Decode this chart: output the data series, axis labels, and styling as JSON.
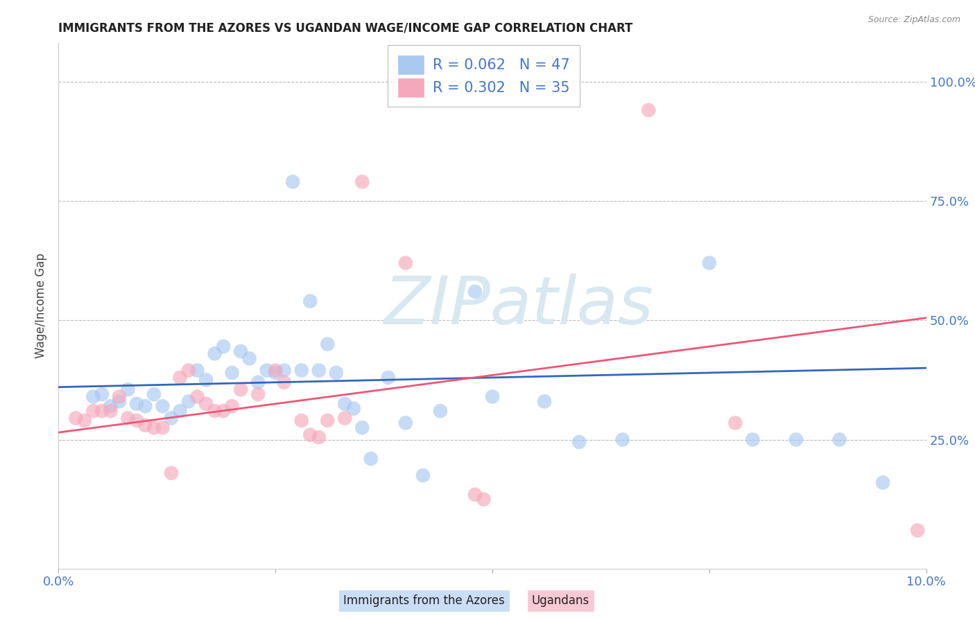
{
  "title": "IMMIGRANTS FROM THE AZORES VS UGANDAN WAGE/INCOME GAP CORRELATION CHART",
  "source": "Source: ZipAtlas.com",
  "ylabel": "Wage/Income Gap",
  "xlim": [
    0.0,
    0.1
  ],
  "ylim": [
    -0.02,
    1.08
  ],
  "ytick_vals": [
    0.25,
    0.5,
    0.75,
    1.0
  ],
  "ytick_labels": [
    "25.0%",
    "50.0%",
    "75.0%",
    "100.0%"
  ],
  "xtick_positions": [
    0.0,
    0.1
  ],
  "xtick_labels": [
    "0.0%",
    "10.0%"
  ],
  "legend1_r": "0.062",
  "legend1_n": "47",
  "legend2_r": "0.302",
  "legend2_n": "35",
  "blue_color": "#a8c8f0",
  "pink_color": "#f5a8bc",
  "blue_line_color": "#3366bb",
  "pink_line_color": "#ee5577",
  "blue_scatter": [
    [
      0.004,
      0.34
    ],
    [
      0.005,
      0.345
    ],
    [
      0.006,
      0.32
    ],
    [
      0.007,
      0.33
    ],
    [
      0.008,
      0.355
    ],
    [
      0.009,
      0.325
    ],
    [
      0.01,
      0.32
    ],
    [
      0.011,
      0.345
    ],
    [
      0.012,
      0.32
    ],
    [
      0.013,
      0.295
    ],
    [
      0.014,
      0.31
    ],
    [
      0.015,
      0.33
    ],
    [
      0.016,
      0.395
    ],
    [
      0.017,
      0.375
    ],
    [
      0.018,
      0.43
    ],
    [
      0.019,
      0.445
    ],
    [
      0.02,
      0.39
    ],
    [
      0.021,
      0.435
    ],
    [
      0.022,
      0.42
    ],
    [
      0.023,
      0.37
    ],
    [
      0.024,
      0.395
    ],
    [
      0.025,
      0.39
    ],
    [
      0.026,
      0.395
    ],
    [
      0.027,
      0.79
    ],
    [
      0.028,
      0.395
    ],
    [
      0.029,
      0.54
    ],
    [
      0.03,
      0.395
    ],
    [
      0.031,
      0.45
    ],
    [
      0.032,
      0.39
    ],
    [
      0.033,
      0.325
    ],
    [
      0.034,
      0.315
    ],
    [
      0.035,
      0.275
    ],
    [
      0.036,
      0.21
    ],
    [
      0.038,
      0.38
    ],
    [
      0.04,
      0.285
    ],
    [
      0.042,
      0.175
    ],
    [
      0.044,
      0.31
    ],
    [
      0.048,
      0.56
    ],
    [
      0.05,
      0.34
    ],
    [
      0.056,
      0.33
    ],
    [
      0.06,
      0.245
    ],
    [
      0.065,
      0.25
    ],
    [
      0.075,
      0.62
    ],
    [
      0.08,
      0.25
    ],
    [
      0.085,
      0.25
    ],
    [
      0.09,
      0.25
    ],
    [
      0.095,
      0.16
    ]
  ],
  "pink_scatter": [
    [
      0.002,
      0.295
    ],
    [
      0.003,
      0.29
    ],
    [
      0.004,
      0.31
    ],
    [
      0.005,
      0.31
    ],
    [
      0.006,
      0.31
    ],
    [
      0.007,
      0.34
    ],
    [
      0.008,
      0.295
    ],
    [
      0.009,
      0.29
    ],
    [
      0.01,
      0.28
    ],
    [
      0.011,
      0.275
    ],
    [
      0.012,
      0.275
    ],
    [
      0.013,
      0.18
    ],
    [
      0.014,
      0.38
    ],
    [
      0.015,
      0.395
    ],
    [
      0.016,
      0.34
    ],
    [
      0.017,
      0.325
    ],
    [
      0.018,
      0.31
    ],
    [
      0.019,
      0.31
    ],
    [
      0.02,
      0.32
    ],
    [
      0.021,
      0.355
    ],
    [
      0.023,
      0.345
    ],
    [
      0.025,
      0.395
    ],
    [
      0.026,
      0.37
    ],
    [
      0.028,
      0.29
    ],
    [
      0.029,
      0.26
    ],
    [
      0.03,
      0.255
    ],
    [
      0.031,
      0.29
    ],
    [
      0.033,
      0.295
    ],
    [
      0.035,
      0.79
    ],
    [
      0.04,
      0.62
    ],
    [
      0.048,
      0.135
    ],
    [
      0.049,
      0.125
    ],
    [
      0.068,
      0.94
    ],
    [
      0.078,
      0.285
    ],
    [
      0.099,
      0.06
    ]
  ],
  "blue_line": [
    [
      0.0,
      0.36
    ],
    [
      0.1,
      0.4
    ]
  ],
  "pink_line": [
    [
      0.0,
      0.265
    ],
    [
      0.1,
      0.505
    ]
  ],
  "background_color": "#ffffff",
  "grid_color": "#bbbbbb",
  "watermark_text": "ZIPatlas",
  "watermark_color": "#d8e8f0",
  "bottom_legend_blue": "Immigrants from the Azores",
  "bottom_legend_pink": "Ugandans",
  "title_color": "#222222",
  "axis_label_color": "#4477cc",
  "ylabel_color": "#444444"
}
